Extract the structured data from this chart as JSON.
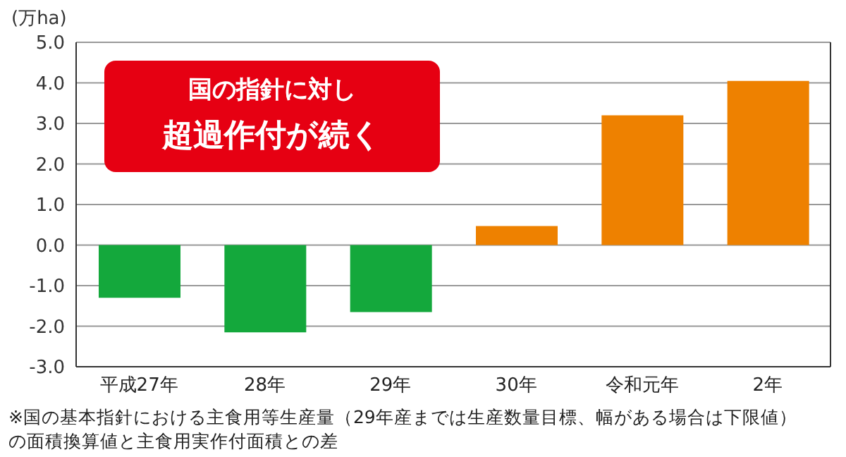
{
  "chart_data": {
    "type": "bar",
    "ylabel": "(万ha)",
    "categories": [
      "平成27年",
      "28年",
      "29年",
      "30年",
      "令和元年",
      "2年"
    ],
    "values": [
      -1.3,
      -2.15,
      -1.65,
      0.47,
      3.2,
      4.05
    ],
    "colors": [
      "#14a83c",
      "#14a83c",
      "#14a83c",
      "#ee8100",
      "#ee8100",
      "#ee8100"
    ],
    "ylim": [
      -3,
      5
    ],
    "yticks": [
      {
        "value": -3,
        "label": "-3.0"
      },
      {
        "value": -2,
        "label": "-2.0"
      },
      {
        "value": -1,
        "label": "-1.0"
      },
      {
        "value": 0,
        "label": "0.0"
      },
      {
        "value": 1,
        "label": "1.0"
      },
      {
        "value": 2,
        "label": "2.0"
      },
      {
        "value": 3,
        "label": "3.0"
      },
      {
        "value": 4,
        "label": "4.0"
      },
      {
        "value": 5,
        "label": "5.0"
      }
    ],
    "grid": "y",
    "annotations": [
      "国の指針に対し",
      "超過作付が続く",
      "※国の基本指針における主食用等生産量（29年産までは生産数量目標、幅がある場合は下限値）の面積換算値と主食用実作付面積との差"
    ]
  }
}
